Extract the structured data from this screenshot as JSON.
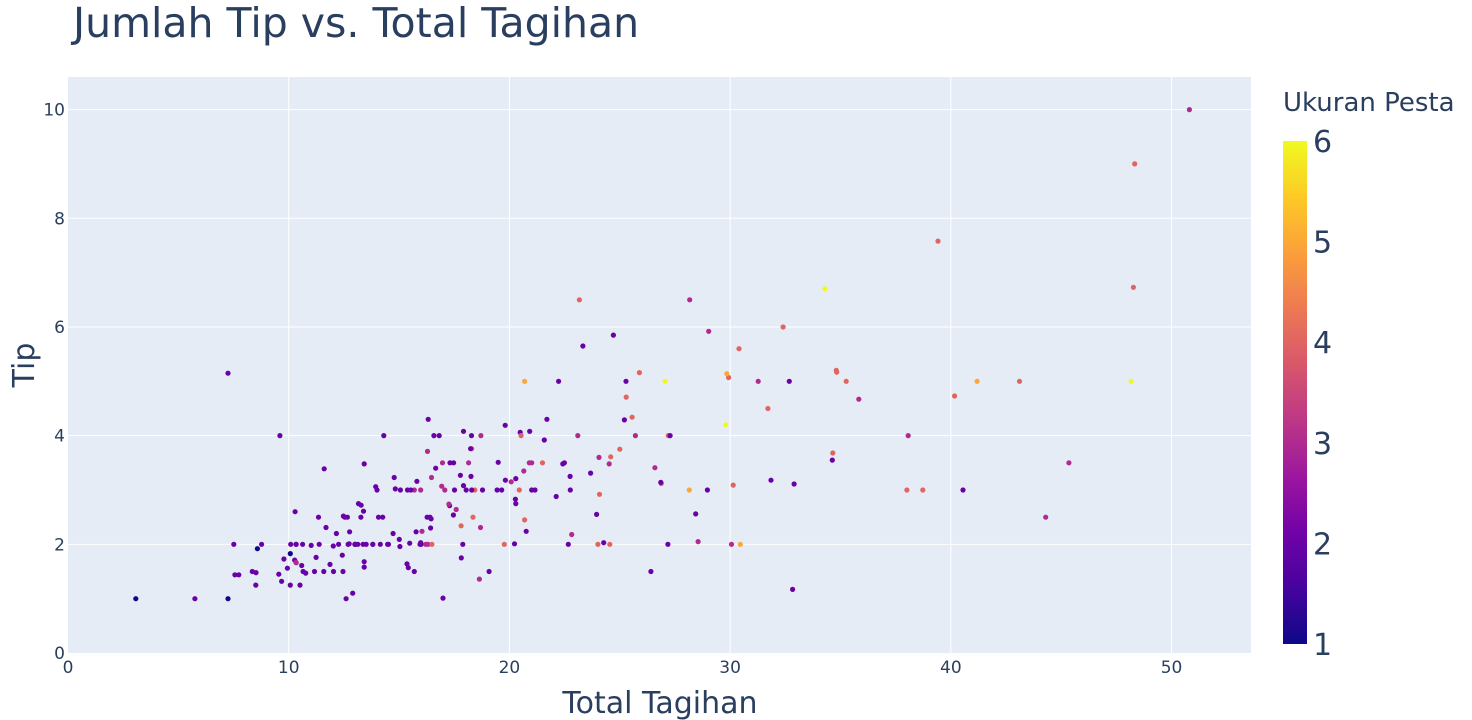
{
  "chart_data": {
    "type": "scatter",
    "title": "Jumlah Tip vs. Total Tagihan",
    "xlabel": "Total Tagihan",
    "ylabel": "Tip",
    "xlim": [
      0,
      53.6
    ],
    "ylim": [
      0,
      10.6
    ],
    "x_ticks": [
      0,
      10,
      20,
      30,
      40,
      50
    ],
    "y_ticks": [
      0,
      2,
      4,
      6,
      8,
      10
    ],
    "grid": true,
    "colorbar": {
      "title": "Ukuran Pesta",
      "min": 1,
      "max": 6,
      "ticks": [
        1,
        2,
        3,
        4,
        5,
        6
      ],
      "colors": [
        "#0d0887",
        "#46039f",
        "#7201a8",
        "#9c179e",
        "#bd3786",
        "#d8576b",
        "#ed7953",
        "#fb9f3a",
        "#fdca26",
        "#f0f921"
      ]
    },
    "points": [
      [
        16.99,
        1.01,
        2
      ],
      [
        10.34,
        1.66,
        3
      ],
      [
        21.01,
        3.5,
        3
      ],
      [
        23.68,
        3.31,
        2
      ],
      [
        24.59,
        3.61,
        4
      ],
      [
        25.29,
        4.71,
        4
      ],
      [
        8.77,
        2.0,
        2
      ],
      [
        26.88,
        3.12,
        4
      ],
      [
        15.04,
        1.96,
        2
      ],
      [
        14.78,
        3.23,
        2
      ],
      [
        10.27,
        1.71,
        2
      ],
      [
        35.26,
        5.0,
        4
      ],
      [
        15.42,
        1.57,
        2
      ],
      [
        18.43,
        3.0,
        4
      ],
      [
        14.83,
        3.02,
        2
      ],
      [
        21.58,
        3.92,
        2
      ],
      [
        10.33,
        1.67,
        3
      ],
      [
        16.29,
        3.71,
        3
      ],
      [
        16.97,
        3.5,
        3
      ],
      [
        20.65,
        3.35,
        3
      ],
      [
        17.92,
        4.08,
        2
      ],
      [
        20.29,
        2.75,
        2
      ],
      [
        15.77,
        2.23,
        2
      ],
      [
        39.42,
        7.58,
        4
      ],
      [
        19.82,
        3.18,
        2
      ],
      [
        17.81,
        2.34,
        4
      ],
      [
        13.37,
        2.0,
        2
      ],
      [
        12.69,
        2.0,
        2
      ],
      [
        21.7,
        4.3,
        2
      ],
      [
        19.65,
        3.0,
        2
      ],
      [
        9.55,
        1.45,
        2
      ],
      [
        18.35,
        2.5,
        4
      ],
      [
        15.06,
        3.0,
        2
      ],
      [
        20.69,
        2.45,
        4
      ],
      [
        17.78,
        3.27,
        2
      ],
      [
        24.06,
        3.6,
        3
      ],
      [
        16.31,
        2.0,
        3
      ],
      [
        16.93,
        3.07,
        3
      ],
      [
        18.69,
        2.31,
        3
      ],
      [
        31.27,
        5.0,
        3
      ],
      [
        16.04,
        2.24,
        3
      ],
      [
        17.46,
        2.54,
        2
      ],
      [
        13.94,
        3.06,
        2
      ],
      [
        9.68,
        1.32,
        2
      ],
      [
        30.4,
        5.6,
        4
      ],
      [
        18.29,
        3.0,
        2
      ],
      [
        22.23,
        5.0,
        2
      ],
      [
        32.4,
        6.0,
        4
      ],
      [
        28.55,
        2.05,
        3
      ],
      [
        18.04,
        3.0,
        2
      ],
      [
        12.54,
        2.5,
        2
      ],
      [
        10.29,
        2.6,
        2
      ],
      [
        34.81,
        5.2,
        4
      ],
      [
        9.94,
        1.56,
        2
      ],
      [
        25.56,
        4.34,
        4
      ],
      [
        19.49,
        3.51,
        2
      ],
      [
        38.01,
        3.0,
        4
      ],
      [
        26.41,
        1.5,
        2
      ],
      [
        11.24,
        1.76,
        2
      ],
      [
        48.27,
        6.73,
        4
      ],
      [
        20.29,
        3.21,
        2
      ],
      [
        13.81,
        2.0,
        2
      ],
      [
        11.02,
        1.98,
        2
      ],
      [
        18.29,
        3.76,
        4
      ],
      [
        17.59,
        2.64,
        3
      ],
      [
        20.08,
        3.15,
        3
      ],
      [
        16.45,
        2.47,
        2
      ],
      [
        3.07,
        1.0,
        1
      ],
      [
        20.23,
        2.01,
        2
      ],
      [
        15.01,
        2.09,
        2
      ],
      [
        12.02,
        1.97,
        2
      ],
      [
        17.07,
        3.0,
        3
      ],
      [
        26.86,
        3.14,
        2
      ],
      [
        25.28,
        5.0,
        2
      ],
      [
        14.73,
        2.2,
        2
      ],
      [
        10.51,
        1.25,
        2
      ],
      [
        17.92,
        3.08,
        2
      ],
      [
        27.2,
        4.0,
        4
      ],
      [
        22.76,
        3.0,
        2
      ],
      [
        17.29,
        2.71,
        2
      ],
      [
        19.44,
        3.0,
        2
      ],
      [
        16.66,
        3.4,
        2
      ],
      [
        10.07,
        1.83,
        1
      ],
      [
        32.68,
        5.0,
        2
      ],
      [
        15.98,
        2.03,
        2
      ],
      [
        34.83,
        5.17,
        4
      ],
      [
        13.03,
        2.0,
        2
      ],
      [
        18.28,
        4.0,
        2
      ],
      [
        24.71,
        5.85,
        2
      ],
      [
        21.16,
        3.0,
        2
      ],
      [
        28.97,
        3.0,
        2
      ],
      [
        22.49,
        3.5,
        2
      ],
      [
        5.75,
        1.0,
        2
      ],
      [
        16.32,
        4.3,
        2
      ],
      [
        22.75,
        3.25,
        2
      ],
      [
        40.17,
        4.73,
        4
      ],
      [
        27.28,
        4.0,
        2
      ],
      [
        12.03,
        1.5,
        2
      ],
      [
        21.01,
        3.0,
        2
      ],
      [
        12.46,
        1.5,
        2
      ],
      [
        11.35,
        2.5,
        2
      ],
      [
        15.38,
        3.0,
        2
      ],
      [
        44.3,
        2.5,
        3
      ],
      [
        22.42,
        3.48,
        2
      ],
      [
        20.92,
        4.08,
        2
      ],
      [
        15.36,
        1.64,
        2
      ],
      [
        20.49,
        4.06,
        2
      ],
      [
        25.21,
        4.29,
        2
      ],
      [
        18.24,
        3.76,
        2
      ],
      [
        14.31,
        4.0,
        2
      ],
      [
        14.0,
        3.0,
        2
      ],
      [
        7.25,
        1.0,
        1
      ],
      [
        38.07,
        4.0,
        3
      ],
      [
        23.95,
        2.55,
        2
      ],
      [
        25.71,
        4.0,
        3
      ],
      [
        17.31,
        3.5,
        2
      ],
      [
        29.93,
        5.07,
        4
      ],
      [
        10.65,
        1.5,
        2
      ],
      [
        12.43,
        1.8,
        2
      ],
      [
        24.08,
        2.92,
        4
      ],
      [
        11.69,
        2.31,
        2
      ],
      [
        13.42,
        1.68,
        2
      ],
      [
        14.26,
        2.5,
        2
      ],
      [
        15.95,
        2.0,
        2
      ],
      [
        12.48,
        2.52,
        2
      ],
      [
        29.8,
        4.2,
        6
      ],
      [
        8.52,
        1.48,
        2
      ],
      [
        14.52,
        2.0,
        2
      ],
      [
        11.38,
        2.0,
        2
      ],
      [
        22.82,
        2.18,
        3
      ],
      [
        19.08,
        1.5,
        2
      ],
      [
        20.27,
        2.83,
        2
      ],
      [
        11.17,
        1.5,
        2
      ],
      [
        12.26,
        2.0,
        2
      ],
      [
        18.26,
        3.25,
        2
      ],
      [
        8.51,
        1.25,
        2
      ],
      [
        10.33,
        2.0,
        2
      ],
      [
        14.15,
        2.0,
        2
      ],
      [
        16.0,
        2.0,
        2
      ],
      [
        13.16,
        2.75,
        2
      ],
      [
        17.47,
        3.5,
        2
      ],
      [
        34.3,
        6.7,
        6
      ],
      [
        41.19,
        5.0,
        5
      ],
      [
        27.05,
        5.0,
        6
      ],
      [
        16.43,
        2.3,
        2
      ],
      [
        8.35,
        1.5,
        2
      ],
      [
        18.64,
        1.36,
        3
      ],
      [
        11.87,
        1.63,
        2
      ],
      [
        9.78,
        1.73,
        2
      ],
      [
        7.51,
        2.0,
        2
      ],
      [
        14.07,
        2.5,
        2
      ],
      [
        13.13,
        2.0,
        2
      ],
      [
        17.26,
        2.74,
        3
      ],
      [
        24.55,
        2.0,
        4
      ],
      [
        19.77,
        2.0,
        4
      ],
      [
        29.85,
        5.14,
        5
      ],
      [
        48.17,
        5.0,
        6
      ],
      [
        25.0,
        3.75,
        4
      ],
      [
        13.39,
        2.61,
        2
      ],
      [
        16.49,
        2.0,
        4
      ],
      [
        21.5,
        3.5,
        4
      ],
      [
        12.66,
        2.5,
        2
      ],
      [
        16.21,
        2.0,
        3
      ],
      [
        13.81,
        2.0,
        2
      ],
      [
        17.51,
        3.0,
        2
      ],
      [
        24.52,
        3.48,
        3
      ],
      [
        20.76,
        2.24,
        2
      ],
      [
        31.71,
        4.5,
        4
      ],
      [
        10.59,
        1.61,
        2
      ],
      [
        10.63,
        2.0,
        2
      ],
      [
        50.81,
        10.0,
        3
      ],
      [
        15.81,
        3.16,
        2
      ],
      [
        7.25,
        5.15,
        2
      ],
      [
        31.85,
        3.18,
        2
      ],
      [
        16.82,
        4.0,
        2
      ],
      [
        32.9,
        3.11,
        2
      ],
      [
        17.89,
        2.0,
        2
      ],
      [
        14.48,
        2.0,
        2
      ],
      [
        9.6,
        4.0,
        2
      ],
      [
        34.63,
        3.55,
        2
      ],
      [
        34.65,
        3.68,
        4
      ],
      [
        23.33,
        5.65,
        2
      ],
      [
        45.35,
        3.5,
        3
      ],
      [
        23.17,
        6.5,
        4
      ],
      [
        40.55,
        3.0,
        2
      ],
      [
        20.69,
        5.0,
        5
      ],
      [
        20.9,
        3.5,
        3
      ],
      [
        30.46,
        2.0,
        5
      ],
      [
        18.15,
        3.5,
        3
      ],
      [
        23.1,
        4.0,
        3
      ],
      [
        15.69,
        1.5,
        2
      ],
      [
        19.81,
        4.19,
        2
      ],
      [
        28.44,
        2.56,
        2
      ],
      [
        15.48,
        2.02,
        2
      ],
      [
        16.58,
        4.0,
        2
      ],
      [
        7.56,
        1.44,
        2
      ],
      [
        10.34,
        2.0,
        2
      ],
      [
        43.11,
        5.0,
        4
      ],
      [
        13.0,
        2.0,
        2
      ],
      [
        13.51,
        2.0,
        2
      ],
      [
        18.71,
        4.0,
        3
      ],
      [
        12.74,
        2.01,
        2
      ],
      [
        13.0,
        2.0,
        2
      ],
      [
        16.4,
        2.5,
        2
      ],
      [
        20.53,
        4.0,
        4
      ],
      [
        16.47,
        3.23,
        3
      ],
      [
        26.59,
        3.41,
        3
      ],
      [
        38.73,
        3.0,
        4
      ],
      [
        24.27,
        2.03,
        2
      ],
      [
        12.76,
        2.23,
        2
      ],
      [
        30.06,
        2.0,
        3
      ],
      [
        25.89,
        5.16,
        4
      ],
      [
        48.33,
        9.0,
        4
      ],
      [
        13.27,
        2.5,
        2
      ],
      [
        28.17,
        6.5,
        3
      ],
      [
        12.9,
        1.1,
        2
      ],
      [
        28.15,
        3.0,
        5
      ],
      [
        11.59,
        1.5,
        2
      ],
      [
        7.74,
        1.44,
        2
      ],
      [
        30.14,
        3.09,
        4
      ],
      [
        12.16,
        2.2,
        2
      ],
      [
        13.42,
        3.48,
        2
      ],
      [
        8.58,
        1.92,
        1
      ],
      [
        15.98,
        3.0,
        3
      ],
      [
        13.42,
        1.58,
        2
      ],
      [
        16.27,
        2.5,
        2
      ],
      [
        10.09,
        2.0,
        2
      ],
      [
        20.45,
        3.0,
        4
      ],
      [
        13.28,
        2.72,
        2
      ],
      [
        22.12,
        2.88,
        2
      ],
      [
        24.01,
        2.0,
        4
      ],
      [
        15.69,
        3.0,
        3
      ],
      [
        11.61,
        3.39,
        2
      ],
      [
        10.77,
        1.47,
        2
      ],
      [
        15.53,
        3.0,
        2
      ],
      [
        10.07,
        1.25,
        2
      ],
      [
        12.6,
        1.0,
        2
      ],
      [
        32.83,
        1.17,
        2
      ],
      [
        35.83,
        4.67,
        3
      ],
      [
        29.03,
        5.92,
        3
      ],
      [
        27.18,
        2.0,
        2
      ],
      [
        22.67,
        2.0,
        2
      ],
      [
        17.82,
        1.75,
        2
      ],
      [
        18.78,
        3.0,
        2
      ]
    ]
  }
}
